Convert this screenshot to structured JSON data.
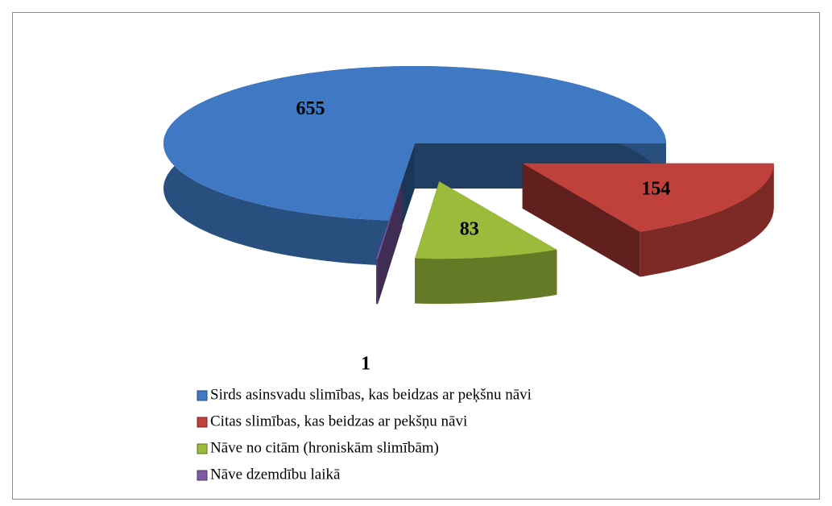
{
  "chart_data": {
    "type": "pie",
    "three_d": true,
    "categories": [
      "Sirds asinsvadu slimības, kas beidzas ar peķšnu nāvi",
      "Citas slimības, kas beidzas ar pekšņu nāvi",
      "Nāve no citām (hroniskām slimībām)",
      "Nāve dzemdību laikā"
    ],
    "values": [
      655,
      154,
      83,
      1
    ],
    "colors": [
      "#3f79c4",
      "#c0403c",
      "#9bbb3a",
      "#7e5aa6"
    ],
    "exploded": [
      false,
      true,
      true,
      true
    ],
    "legend": "bottom"
  }
}
